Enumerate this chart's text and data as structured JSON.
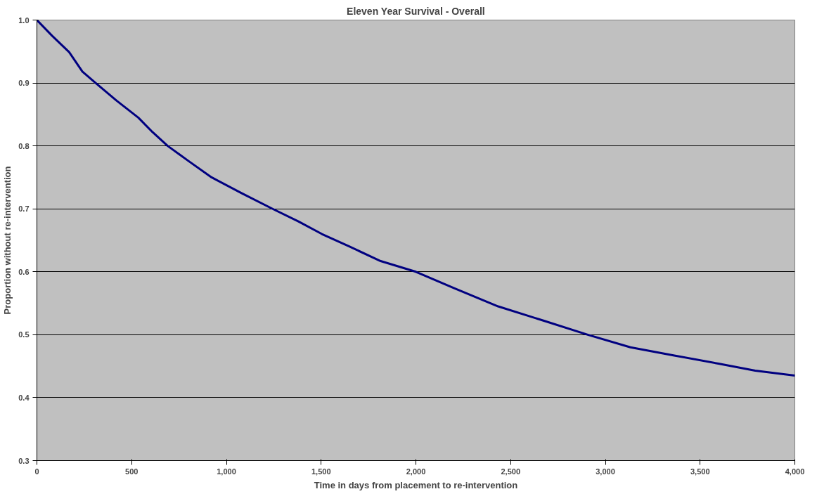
{
  "chart_data": {
    "type": "line",
    "title": "Eleven Year Survival - Overall",
    "xlabel": "Time in days from placement to re-intervention",
    "ylabel": "Proportion without re-intervention",
    "x": [
      0,
      80,
      170,
      240,
      310,
      420,
      535,
      610,
      690,
      800,
      922,
      1080,
      1244,
      1380,
      1504,
      1650,
      1814,
      2000,
      2202,
      2434,
      2667,
      2907,
      3132,
      3364,
      3597,
      3791,
      4000
    ],
    "series": [
      {
        "color": "#000080",
        "values": [
          1.0,
          0.975,
          0.949,
          0.918,
          0.9,
          0.872,
          0.845,
          0.822,
          0.8,
          0.776,
          0.75,
          0.725,
          0.7,
          0.68,
          0.66,
          0.64,
          0.617,
          0.6,
          0.574,
          0.545,
          0.523,
          0.5,
          0.48,
          0.467,
          0.454,
          0.443,
          0.435
        ]
      }
    ],
    "xlim": [
      0,
      4000
    ],
    "ylim": [
      0.3,
      1.0
    ],
    "xticks": [
      0,
      500,
      {
        "value": 1000,
        "label": "1,000"
      },
      {
        "value": 1500,
        "label": "1,500"
      },
      {
        "value": 2000,
        "label": "2,000"
      },
      {
        "value": 2500,
        "label": "2,500"
      },
      {
        "value": 3000,
        "label": "3,000"
      },
      {
        "value": 3500,
        "label": "3,500"
      },
      {
        "value": 4000,
        "label": "4,000"
      }
    ],
    "yticks": [
      0.3,
      0.4,
      0.5,
      0.6,
      0.7,
      0.8,
      0.9,
      {
        "value": 1.0,
        "label": "1.0"
      }
    ],
    "grid": "y",
    "marker": "none",
    "line_style": "solid"
  }
}
